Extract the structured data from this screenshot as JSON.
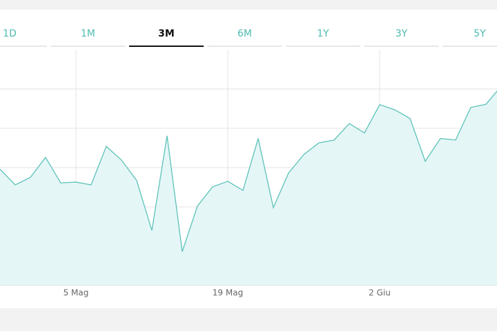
{
  "tabs": [
    "1D",
    "1M",
    "3M",
    "6M",
    "1Y",
    "3Y",
    "5Y"
  ],
  "selected_tab": 2,
  "chart_data": {
    "type": "area",
    "categories": [
      null,
      null,
      null,
      null,
      null,
      "5 Mag",
      null,
      null,
      null,
      null,
      null,
      null,
      null,
      null,
      null,
      "19 Mag",
      null,
      null,
      null,
      null,
      null,
      null,
      null,
      null,
      null,
      "2 Giu",
      null,
      null,
      null,
      null,
      null,
      null,
      null,
      null
    ],
    "values": [
      2.96,
      2.56,
      2.75,
      3.26,
      2.61,
      2.63,
      2.56,
      3.54,
      3.19,
      2.67,
      1.4,
      3.81,
      0.86,
      2.02,
      2.51,
      2.65,
      2.42,
      3.74,
      1.98,
      2.86,
      3.33,
      3.63,
      3.7,
      4.12,
      3.88,
      4.6,
      4.47,
      4.25,
      3.16,
      3.74,
      3.7,
      4.53,
      4.61,
      5.07
    ],
    "color": "#5cc2b8",
    "fill": "#e5f6f7",
    "ylim": [
      0,
      6
    ],
    "ygrid": [
      1,
      2,
      3,
      4,
      5
    ]
  }
}
